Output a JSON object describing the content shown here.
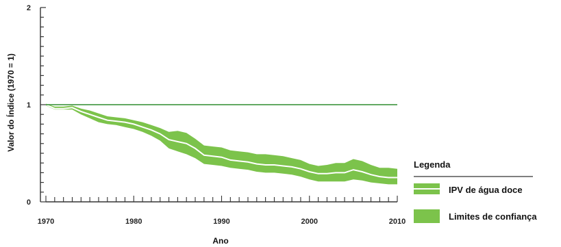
{
  "chart_data": {
    "type": "area",
    "xlabel": "Ano",
    "ylabel": "Valor do Índice (1970 = 1)",
    "xlim": [
      1970,
      2010
    ],
    "ylim": [
      0,
      2
    ],
    "x_ticks": [
      1970,
      1980,
      1990,
      2000,
      2010
    ],
    "y_ticks": [
      0,
      1,
      2
    ],
    "reference_line": 1,
    "legend": {
      "title": "Legenda",
      "position": "bottom-right",
      "items": [
        "IPV de água doce",
        "Limites de confiança"
      ]
    },
    "series": [
      {
        "name": "IPV de água doce",
        "x": [
          1970,
          1971,
          1972,
          1973,
          1974,
          1975,
          1976,
          1977,
          1978,
          1979,
          1980,
          1981,
          1982,
          1983,
          1984,
          1985,
          1986,
          1987,
          1988,
          1989,
          1990,
          1991,
          1992,
          1993,
          1994,
          1995,
          1996,
          1997,
          1998,
          1999,
          2000,
          2001,
          2002,
          2003,
          2004,
          2005,
          2006,
          2007,
          2008,
          2009,
          2010
        ],
        "values": [
          1.0,
          0.96,
          0.96,
          0.97,
          0.93,
          0.9,
          0.87,
          0.84,
          0.83,
          0.82,
          0.8,
          0.77,
          0.74,
          0.7,
          0.64,
          0.62,
          0.6,
          0.55,
          0.48,
          0.47,
          0.46,
          0.43,
          0.42,
          0.41,
          0.39,
          0.38,
          0.38,
          0.37,
          0.36,
          0.34,
          0.31,
          0.29,
          0.29,
          0.3,
          0.3,
          0.33,
          0.31,
          0.28,
          0.26,
          0.25,
          0.25
        ]
      },
      {
        "name": "Limites de confiança",
        "x": [
          1970,
          1971,
          1972,
          1973,
          1974,
          1975,
          1976,
          1977,
          1978,
          1979,
          1980,
          1981,
          1982,
          1983,
          1984,
          1985,
          1986,
          1987,
          1988,
          1989,
          1990,
          1991,
          1992,
          1993,
          1994,
          1995,
          1996,
          1997,
          1998,
          1999,
          2000,
          2001,
          2002,
          2003,
          2004,
          2005,
          2006,
          2007,
          2008,
          2009,
          2010
        ],
        "lower": [
          0.99,
          0.95,
          0.95,
          0.95,
          0.9,
          0.86,
          0.82,
          0.8,
          0.79,
          0.77,
          0.75,
          0.72,
          0.68,
          0.63,
          0.55,
          0.52,
          0.49,
          0.45,
          0.39,
          0.38,
          0.37,
          0.35,
          0.34,
          0.33,
          0.31,
          0.3,
          0.3,
          0.29,
          0.28,
          0.26,
          0.23,
          0.21,
          0.21,
          0.21,
          0.21,
          0.23,
          0.22,
          0.2,
          0.19,
          0.18,
          0.18
        ],
        "upper": [
          1.01,
          0.98,
          0.98,
          0.99,
          0.96,
          0.94,
          0.91,
          0.88,
          0.87,
          0.86,
          0.84,
          0.82,
          0.79,
          0.76,
          0.72,
          0.73,
          0.71,
          0.65,
          0.58,
          0.57,
          0.56,
          0.53,
          0.52,
          0.51,
          0.49,
          0.49,
          0.48,
          0.47,
          0.45,
          0.43,
          0.39,
          0.37,
          0.38,
          0.4,
          0.4,
          0.44,
          0.42,
          0.38,
          0.35,
          0.35,
          0.34
        ]
      }
    ],
    "colors": {
      "band": "#7cc34b",
      "line": "#ffffff",
      "reference": "#2e8b2e",
      "axis": "#333333"
    }
  }
}
